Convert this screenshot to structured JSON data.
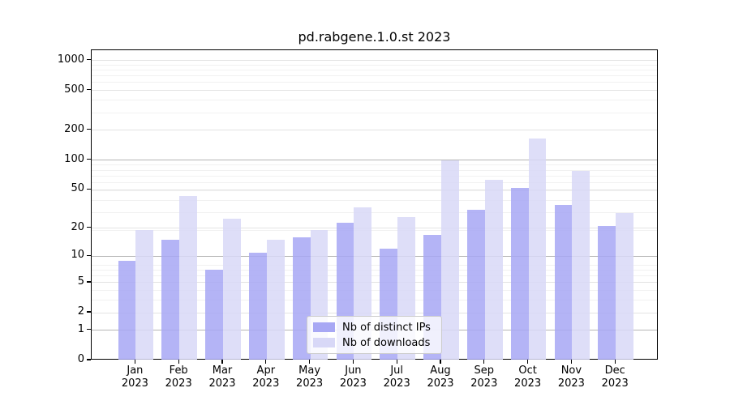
{
  "figure": {
    "title": "pd.rabgene.1.0.st 2023",
    "background": "#ffffff"
  },
  "chart_data": {
    "type": "bar",
    "title": "pd.rabgene.1.0.st 2023",
    "categories": [
      "Jan 2023",
      "Feb 2023",
      "Mar 2023",
      "Apr 2023",
      "May 2023",
      "Jun 2023",
      "Jul 2023",
      "Aug 2023",
      "Sep 2023",
      "Oct 2023",
      "Nov 2023",
      "Dec 2023"
    ],
    "x_tick_months": [
      "Jan",
      "Feb",
      "Mar",
      "Apr",
      "May",
      "Jun",
      "Jul",
      "Aug",
      "Sep",
      "Oct",
      "Nov",
      "Dec"
    ],
    "x_tick_year": "2023",
    "series": [
      {
        "name": "Nb of distinct IPs",
        "color": "#a7a7f4",
        "values": [
          9,
          15,
          7,
          11,
          16,
          23,
          12,
          17,
          31,
          52,
          35,
          21
        ]
      },
      {
        "name": "Nb of downloads",
        "color": "#d8d8f7",
        "values": [
          19,
          43,
          25,
          15,
          19,
          33,
          26,
          100,
          63,
          165,
          78,
          29
        ]
      }
    ],
    "y_scale": "log10(1+x)",
    "y_ticks": [
      0,
      1,
      2,
      5,
      10,
      20,
      50,
      100,
      200,
      500,
      1000
    ],
    "y_major_gridlines": [
      1,
      10,
      100
    ],
    "ylim": [
      0,
      1240
    ],
    "grid": true,
    "legend_position": "lower-center"
  },
  "colors": {
    "distinct_ips": "#a7a7f4",
    "downloads": "#d8d8f7",
    "grid_major": "#b5b5b5",
    "grid_labeled": "#e3e3e3",
    "grid_faint": "#f1f1f1",
    "axis": "#000000",
    "legend_border": "#cccccc"
  }
}
